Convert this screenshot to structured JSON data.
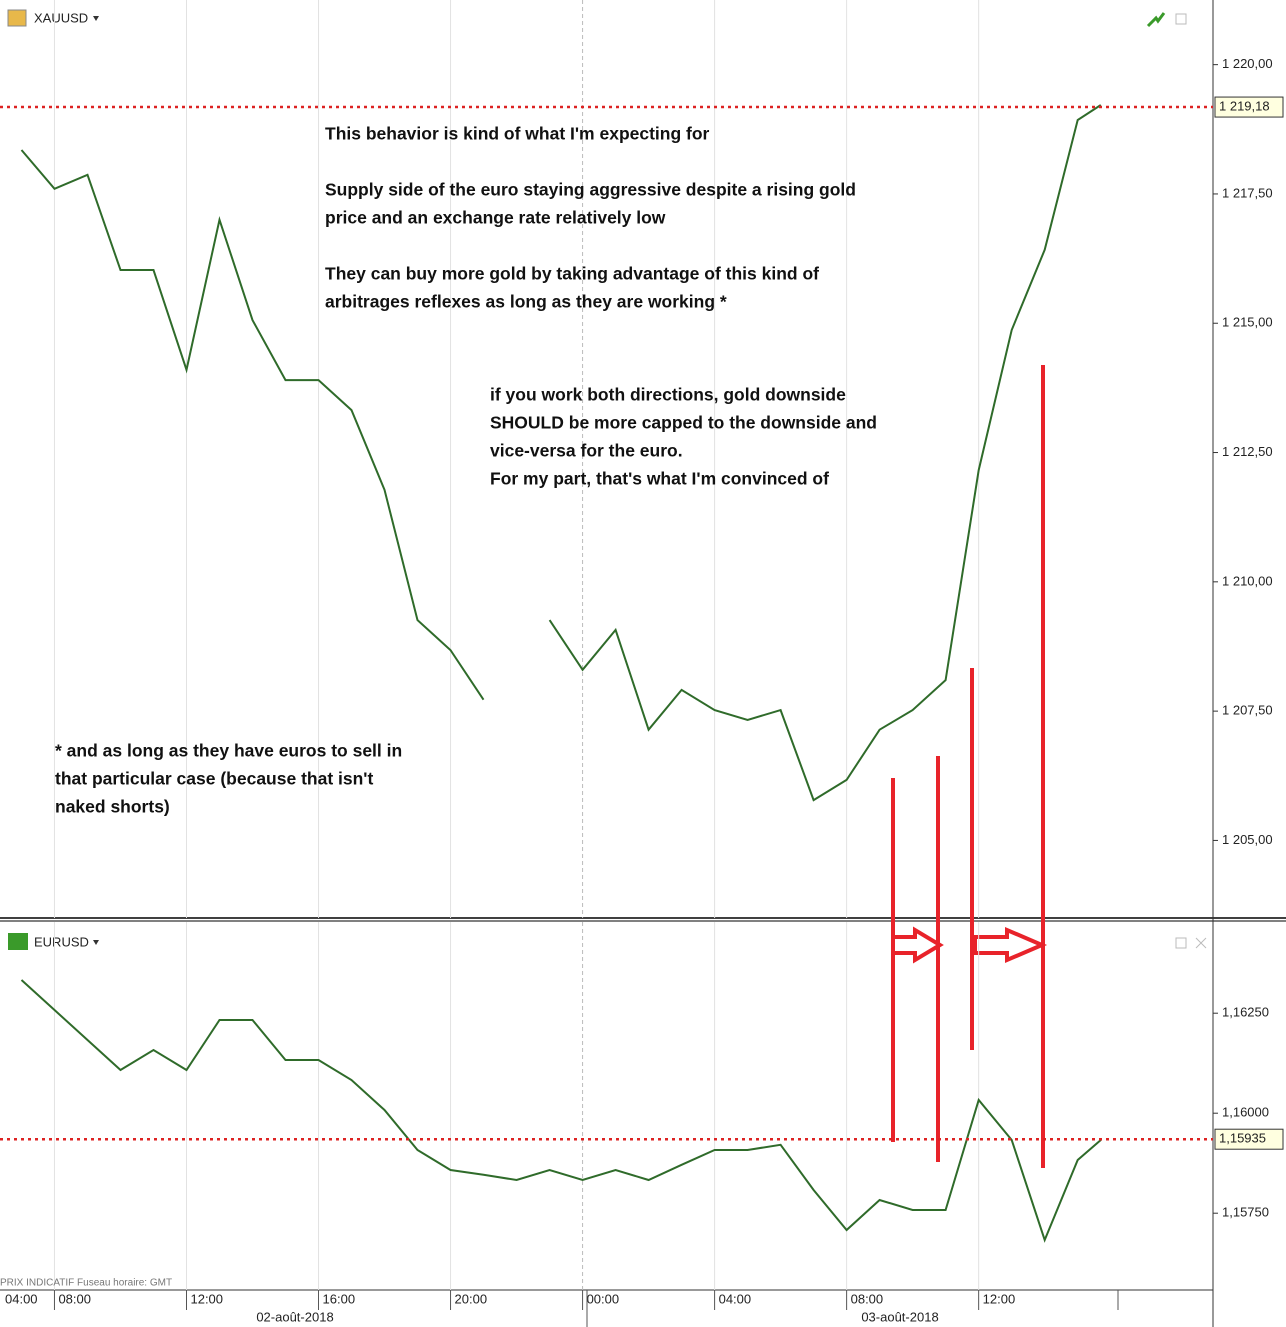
{
  "chart_data": [
    {
      "type": "line",
      "instrument": "XAUUSD",
      "color": "#2f6b2a",
      "x": [
        7,
        8,
        9,
        10,
        11,
        12,
        13,
        14,
        15,
        16,
        17,
        18,
        19,
        20,
        21,
        22,
        23,
        24,
        25,
        26,
        27,
        28,
        29,
        30,
        31,
        32,
        33,
        34,
        35,
        36,
        37,
        38,
        39,
        39.7
      ],
      "values": [
        1218.35,
        1217.6,
        1217.87,
        1216.03,
        1216.03,
        1214.1,
        1217.0,
        1215.06,
        1213.9,
        1213.9,
        1213.32,
        1211.78,
        1209.26,
        1208.68,
        1207.72,
        null,
        1209.26,
        1208.3,
        1209.07,
        1207.14,
        1207.91,
        1207.52,
        1207.33,
        1207.52,
        1205.78,
        1206.17,
        1207.14,
        1207.52,
        1208.1,
        1212.16,
        1214.87,
        1216.42,
        1218.93,
        1219.22
      ],
      "xlim": [
        6.35,
        43.1
      ],
      "ylim": [
        1203.5,
        1221.25
      ],
      "xticks": [
        8,
        12,
        16,
        20,
        24,
        28,
        32,
        36
      ],
      "yticks": [
        {
          "value": 1205,
          "label": "1 205,00"
        },
        {
          "value": 1207.5,
          "label": "1 207,50"
        },
        {
          "value": 1210,
          "label": "1 210,00"
        },
        {
          "value": 1212.5,
          "label": "1 212,50"
        },
        {
          "value": 1215,
          "label": "1 215,00"
        },
        {
          "value": 1217.5,
          "label": "1 217,50"
        },
        {
          "value": 1220,
          "label": "1 220,00"
        }
      ],
      "reference": {
        "value": 1219.18,
        "label": "1 219,18"
      },
      "annotations": [
        [
          "This behavior is kind of what I'm expecting for",
          "",
          "Supply side of the euro staying aggressive despite a rising gold",
          "price and an exchange rate relatively low",
          "",
          "They can buy more gold by taking advantage of this kind of",
          "arbitrages  reflexes as long as they are working *"
        ],
        [
          "if you work both directions, gold downside",
          "SHOULD be more capped to the downside and",
          "vice-versa for the euro.",
          "For my part, that's what I'm convinced of"
        ],
        [
          "* and as long as they have euros to sell in",
          "that particular case (because that isn't",
          "naked shorts)"
        ]
      ]
    },
    {
      "type": "line",
      "instrument": "EURUSD",
      "color": "#2f6b2a",
      "x": [
        7,
        8,
        9,
        10,
        11,
        12,
        13,
        14,
        15,
        16,
        17,
        18,
        19,
        20,
        21,
        22,
        23,
        24,
        25,
        26,
        27,
        28,
        29,
        30,
        31,
        32,
        33,
        34,
        35,
        36,
        37,
        38,
        39,
        39.7
      ],
      "values": [
        1.16333,
        1.16258,
        1.16183,
        1.16108,
        1.16158,
        1.16108,
        1.16233,
        1.16233,
        1.16133,
        1.16133,
        1.16083,
        1.16008,
        1.15908,
        1.15858,
        1.15846,
        1.15833,
        1.15858,
        1.15833,
        1.15858,
        1.15833,
        1.15871,
        1.15908,
        1.15908,
        1.15921,
        1.15808,
        1.15708,
        1.15783,
        1.15758,
        1.15758,
        1.16033,
        1.15933,
        1.15683,
        1.15883,
        1.15933
      ],
      "xlim": [
        6.35,
        43.1
      ],
      "ylim": [
        1.15558,
        1.16478
      ],
      "xticks": [
        {
          "value": 8,
          "label": "08:00"
        },
        {
          "value": 12,
          "label": "12:00"
        },
        {
          "value": 16,
          "label": "16:00"
        },
        {
          "value": 20,
          "label": "20:00"
        },
        {
          "value": 24,
          "label": "00:00"
        },
        {
          "value": 28,
          "label": "04:00"
        },
        {
          "value": 32,
          "label": "08:00"
        },
        {
          "value": 36,
          "label": "12:00"
        }
      ],
      "x_start_label": "04:00",
      "yticks": [
        {
          "value": 1.1575,
          "label": "1,15750"
        },
        {
          "value": 1.16,
          "label": "1,16000"
        },
        {
          "value": 1.1625,
          "label": "1,16250"
        }
      ],
      "reference": {
        "value": 1.15935,
        "label": "1,15935"
      },
      "date_labels": [
        "02-août-2018",
        "03-août-2018"
      ],
      "footer": "PRIX INDICATIF   Fuseau horaire: GMT"
    }
  ]
}
